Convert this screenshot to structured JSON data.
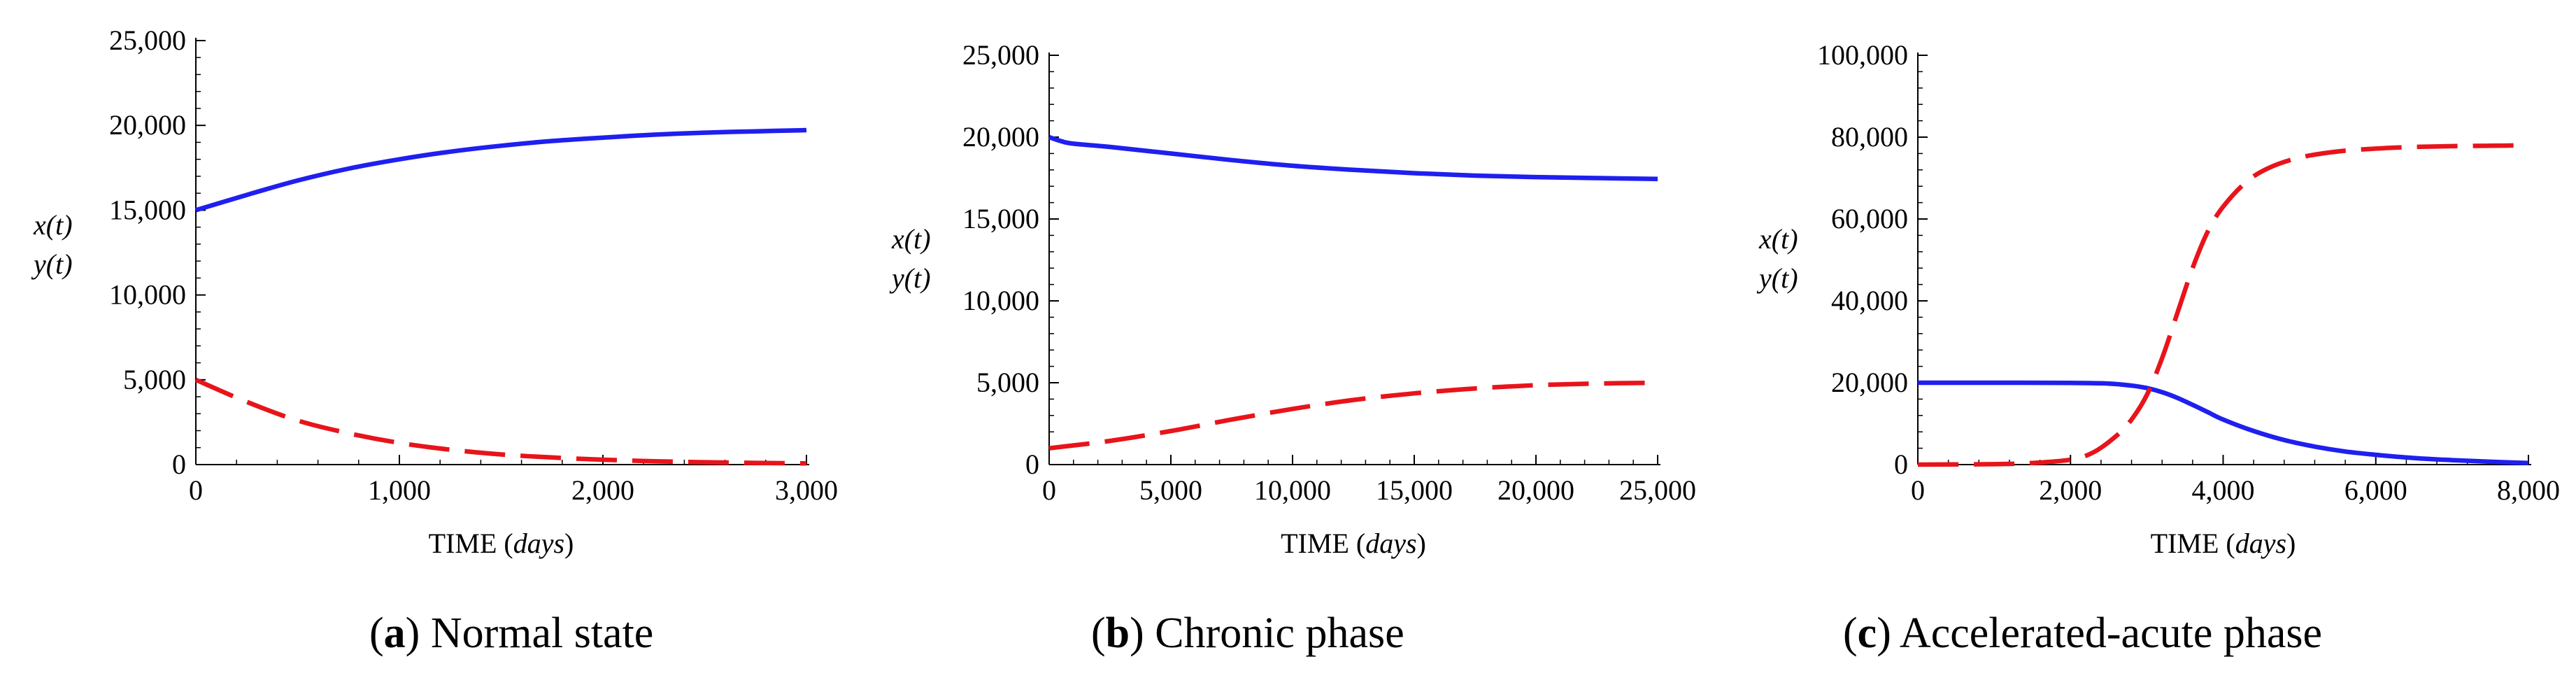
{
  "chart_data": [
    {
      "type": "line",
      "caption": {
        "letter": "a",
        "text": "Normal state"
      },
      "xlabel": {
        "text": "TIME",
        "unit": "days"
      },
      "ylabel_lines": [
        "x(t)",
        "y(t)"
      ],
      "xlim": [
        0,
        3000
      ],
      "ylim": [
        0,
        25000
      ],
      "x_ticks": [
        0,
        1000,
        2000,
        3000
      ],
      "x_tick_labels": [
        "0",
        "1,000",
        "2,000",
        "3,000"
      ],
      "y_ticks": [
        0,
        5000,
        10000,
        15000,
        20000,
        25000
      ],
      "y_tick_labels": [
        "0",
        "5,000",
        "10,000",
        "15,000",
        "20,000",
        "25,000"
      ],
      "series": [
        {
          "name": "x(t)",
          "color": "#1f1ff0",
          "dash": "solid",
          "x": [
            0,
            250,
            500,
            750,
            1000,
            1250,
            1500,
            1750,
            2000,
            2250,
            2500,
            2750,
            3000
          ],
          "y": [
            15000,
            15900,
            16750,
            17450,
            18000,
            18450,
            18800,
            19080,
            19280,
            19450,
            19570,
            19650,
            19720
          ]
        },
        {
          "name": "y(t)",
          "color": "#e8141b",
          "dash": "dashed",
          "x": [
            0,
            250,
            500,
            750,
            1000,
            1250,
            1500,
            1750,
            2000,
            2250,
            2500,
            2750,
            3000
          ],
          "y": [
            5000,
            3700,
            2600,
            1850,
            1280,
            880,
            600,
            420,
            290,
            200,
            140,
            100,
            70
          ]
        }
      ]
    },
    {
      "type": "line",
      "caption": {
        "letter": "b",
        "text": "Chronic phase"
      },
      "xlabel": {
        "text": "TIME",
        "unit": "days"
      },
      "ylabel_lines": [
        "x(t)",
        "y(t)"
      ],
      "xlim": [
        0,
        25000
      ],
      "ylim": [
        0,
        25000
      ],
      "x_ticks": [
        0,
        5000,
        10000,
        15000,
        20000,
        25000
      ],
      "x_tick_labels": [
        "0",
        "5,000",
        "10,000",
        "15,000",
        "20,000",
        "25,000"
      ],
      "y_ticks": [
        0,
        5000,
        10000,
        15000,
        20000,
        25000
      ],
      "y_tick_labels": [
        "0",
        "5,000",
        "10,000",
        "15,000",
        "20,000",
        "25,000"
      ],
      "series": [
        {
          "name": "x(t)",
          "color": "#1f1ff0",
          "dash": "solid",
          "x": [
            0,
            500,
            1000,
            2500,
            5000,
            7500,
            10000,
            12500,
            15000,
            17500,
            20000,
            22500,
            25000
          ],
          "y": [
            20000,
            19750,
            19600,
            19400,
            19000,
            18600,
            18250,
            18000,
            17800,
            17650,
            17560,
            17500,
            17450
          ]
        },
        {
          "name": "y(t)",
          "color": "#e8141b",
          "dash": "dashed",
          "x": [
            0,
            2500,
            5000,
            7500,
            10000,
            12500,
            15000,
            17500,
            20000,
            22500,
            25000
          ],
          "y": [
            1000,
            1450,
            2050,
            2750,
            3400,
            3950,
            4350,
            4650,
            4850,
            4950,
            5000
          ]
        }
      ]
    },
    {
      "type": "line",
      "caption": {
        "letter": "c",
        "text": "Accelerated-acute phase"
      },
      "xlabel": {
        "text": "TIME",
        "unit": "days"
      },
      "ylabel_lines": [
        "x(t)",
        "y(t)"
      ],
      "xlim": [
        0,
        8000
      ],
      "ylim": [
        0,
        100000
      ],
      "x_ticks": [
        0,
        2000,
        4000,
        6000,
        8000
      ],
      "x_tick_labels": [
        "0",
        "2,000",
        "4,000",
        "6,000",
        "8,000"
      ],
      "y_ticks": [
        0,
        20000,
        40000,
        60000,
        80000,
        100000
      ],
      "y_tick_labels": [
        "0",
        "20,000",
        "40,000",
        "60,000",
        "80,000",
        "100,000"
      ],
      "series": [
        {
          "name": "x(t)",
          "color": "#1f1ff0",
          "dash": "solid",
          "x": [
            0,
            1000,
            2000,
            2500,
            2800,
            3000,
            3200,
            3400,
            3600,
            3800,
            4000,
            4400,
            4800,
            5200,
            5600,
            6000,
            6500,
            7000,
            7500,
            8000
          ],
          "y": [
            20000,
            20000,
            19950,
            19800,
            19300,
            18700,
            17700,
            16300,
            14600,
            12800,
            11000,
            8200,
            6000,
            4400,
            3200,
            2400,
            1600,
            1100,
            700,
            400
          ]
        },
        {
          "name": "y(t)",
          "color": "#e8141b",
          "dash": "dashed",
          "x": [
            0,
            1000,
            1500,
            2000,
            2300,
            2600,
            2800,
            3000,
            3200,
            3400,
            3600,
            3800,
            4000,
            4300,
            4600,
            5000,
            5500,
            6000,
            6500,
            7000,
            7500,
            8000
          ],
          "y": [
            0,
            100,
            400,
            1200,
            3000,
            7000,
            11000,
            17000,
            26000,
            37000,
            48000,
            57000,
            63000,
            69000,
            72500,
            75000,
            76500,
            77200,
            77600,
            77800,
            77900,
            78000
          ]
        }
      ]
    }
  ]
}
